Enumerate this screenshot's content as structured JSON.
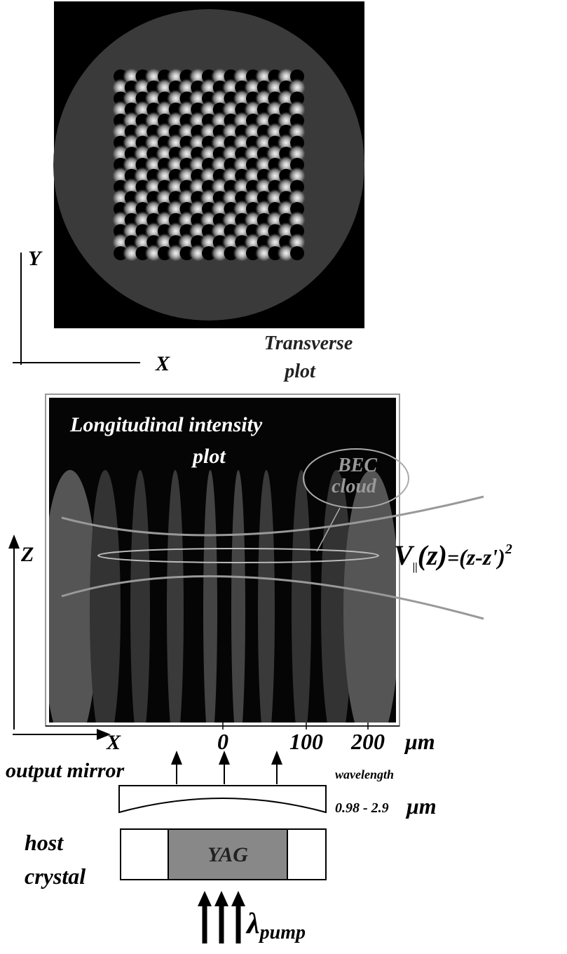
{
  "transverse": {
    "y_axis": "Y",
    "x_axis": "X",
    "caption_1": "Transverse",
    "caption_2": "plot"
  },
  "longitudinal": {
    "title_1": "Longitudinal  intensity",
    "title_2": "plot",
    "bec_1": "BEC",
    "bec_2": "cloud",
    "z_axis": "Z",
    "x_axis": "X",
    "ticks": [
      "0",
      "100",
      "200"
    ],
    "unit": "μm",
    "potential": {
      "v": "V",
      "sub": "||",
      "arg": "(z)",
      "eq": "=",
      "rhs": "(z-z')",
      "exp": "2"
    }
  },
  "mirror": {
    "label": "output mirror",
    "wavelength": "wavelength",
    "range": "0.98 - 2.9",
    "unit": "μm"
  },
  "crystal": {
    "label_1": "host",
    "label_2": "crystal",
    "material": "YAG",
    "pump_symbol": "λ",
    "pump_sub": "pump"
  }
}
